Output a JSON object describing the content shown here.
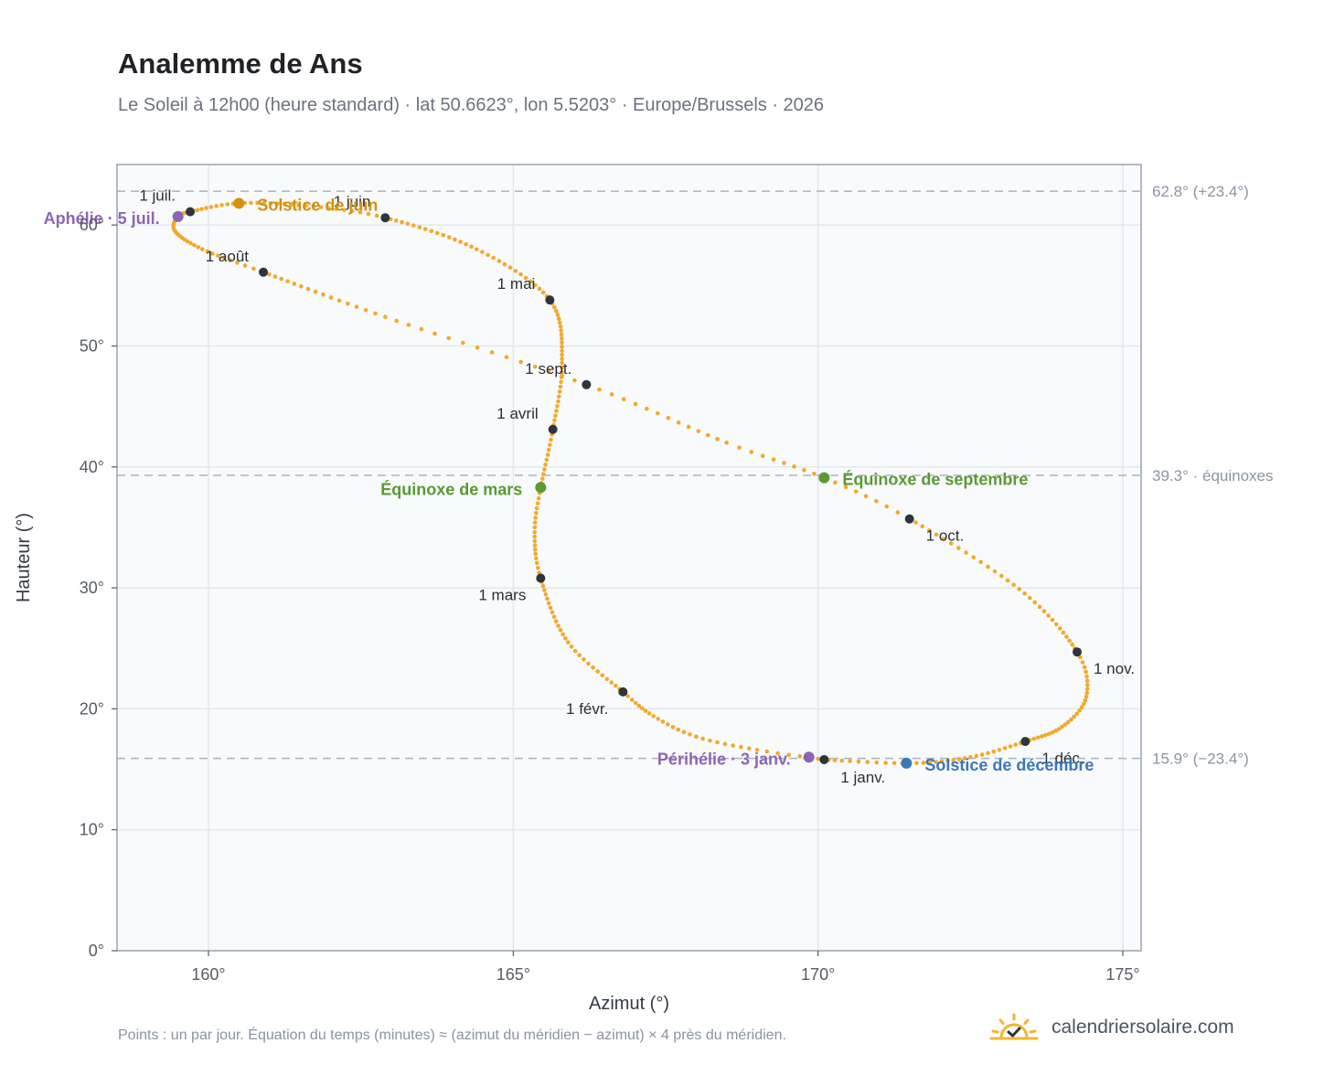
{
  "title": "Analemme de Ans",
  "subtitle": "Le Soleil à 12h00 (heure standard) · lat 50.6623°, lon 5.5203° · Europe/Brussels · 2026",
  "footnote": "Points : un par jour. Équation du temps (minutes) ≈ (azimut du méridien − azimut) × 4 près du méridien.",
  "brand": {
    "text": "calendriersolaire.com",
    "icon": "sun-check-icon",
    "color": "#f2b731"
  },
  "colors": {
    "curve": "#f2a92b",
    "month_marker": "#2f343b",
    "solstice_june": "#d4900e",
    "solstice_december": "#3a78b8",
    "equinox": "#5a9a32",
    "apsis": "#8d64b4",
    "grid": "#e3e8ee",
    "plot_bg": "#f8fafc",
    "frame": "#9aa4b1",
    "reference_line": "#a8b3c2"
  },
  "chart_data": {
    "type": "scatter",
    "title": "Analemme de Ans",
    "xlabel": "Azimut (°)",
    "ylabel": "Hauteur (°)",
    "xlim": [
      158.5,
      175.3
    ],
    "ylim": [
      0,
      65
    ],
    "xticks": [
      160,
      165,
      170,
      175
    ],
    "xtick_labels": [
      "160°",
      "165°",
      "170°",
      "175°"
    ],
    "yticks": [
      0,
      10,
      20,
      30,
      40,
      50,
      60
    ],
    "ytick_labels": [
      "0°",
      "10°",
      "20°",
      "30°",
      "40°",
      "50°",
      "60°"
    ],
    "grid": true,
    "marker_note": "one point per day",
    "curve_anchors": [
      {
        "doy": 1,
        "az": 170.1,
        "alt": 15.8
      },
      {
        "doy": 8,
        "az": 169.0,
        "alt": 16.6
      },
      {
        "doy": 16,
        "az": 168.0,
        "alt": 17.7
      },
      {
        "doy": 24,
        "az": 167.3,
        "alt": 19.4
      },
      {
        "doy": 32,
        "az": 166.8,
        "alt": 21.4
      },
      {
        "doy": 45,
        "az": 165.9,
        "alt": 25.5
      },
      {
        "doy": 60,
        "az": 165.45,
        "alt": 30.8
      },
      {
        "doy": 70,
        "az": 165.35,
        "alt": 34.6
      },
      {
        "doy": 79,
        "az": 165.45,
        "alt": 38.3
      },
      {
        "doy": 91,
        "az": 165.65,
        "alt": 43.1
      },
      {
        "doy": 105,
        "az": 165.8,
        "alt": 48.6
      },
      {
        "doy": 121,
        "az": 165.6,
        "alt": 53.8
      },
      {
        "doy": 136,
        "az": 164.4,
        "alt": 58.0
      },
      {
        "doy": 152,
        "az": 162.9,
        "alt": 60.6
      },
      {
        "doy": 162,
        "az": 161.6,
        "alt": 61.6
      },
      {
        "doy": 172,
        "az": 160.5,
        "alt": 61.8
      },
      {
        "doy": 182,
        "az": 159.7,
        "alt": 61.1
      },
      {
        "doy": 186,
        "az": 159.5,
        "alt": 60.7
      },
      {
        "doy": 194,
        "az": 159.45,
        "alt": 59.5
      },
      {
        "doy": 204,
        "az": 159.9,
        "alt": 58.0
      },
      {
        "doy": 213,
        "az": 160.9,
        "alt": 56.1
      },
      {
        "doy": 229,
        "az": 162.9,
        "alt": 52.4
      },
      {
        "doy": 244,
        "az": 166.2,
        "alt": 46.8
      },
      {
        "doy": 257,
        "az": 168.5,
        "alt": 42.0
      },
      {
        "doy": 266,
        "az": 170.1,
        "alt": 39.1
      },
      {
        "doy": 274,
        "az": 171.5,
        "alt": 35.7
      },
      {
        "doy": 290,
        "az": 173.3,
        "alt": 29.9
      },
      {
        "doy": 305,
        "az": 174.25,
        "alt": 24.7
      },
      {
        "doy": 315,
        "az": 174.4,
        "alt": 21.0
      },
      {
        "doy": 325,
        "az": 174.0,
        "alt": 18.5
      },
      {
        "doy": 335,
        "az": 173.4,
        "alt": 17.3
      },
      {
        "doy": 345,
        "az": 172.5,
        "alt": 16.0
      },
      {
        "doy": 355,
        "az": 171.5,
        "alt": 15.5
      },
      {
        "doy": 366,
        "az": 170.1,
        "alt": 15.8
      }
    ],
    "month_markers": [
      {
        "label": "1 janv.",
        "az": 170.1,
        "alt": 15.8,
        "anchor": "start",
        "dx": 18,
        "dy": 25
      },
      {
        "label": "1 févr.",
        "az": 166.8,
        "alt": 21.4,
        "anchor": "end",
        "dx": -16,
        "dy": 24
      },
      {
        "label": "1 mars",
        "az": 165.45,
        "alt": 30.8,
        "anchor": "end",
        "dx": -16,
        "dy": 24
      },
      {
        "label": "1 avril",
        "az": 165.65,
        "alt": 43.1,
        "anchor": "end",
        "dx": -16,
        "dy": -12
      },
      {
        "label": "1 mai",
        "az": 165.6,
        "alt": 53.8,
        "anchor": "end",
        "dx": -16,
        "dy": -12
      },
      {
        "label": "1 juin",
        "az": 162.9,
        "alt": 60.6,
        "anchor": "end",
        "dx": -16,
        "dy": -12
      },
      {
        "label": "1 juil.",
        "az": 159.7,
        "alt": 61.1,
        "anchor": "end",
        "dx": -16,
        "dy": -12
      },
      {
        "label": "1 août",
        "az": 160.9,
        "alt": 56.1,
        "anchor": "end",
        "dx": -16,
        "dy": -12
      },
      {
        "label": "1 sept.",
        "az": 166.2,
        "alt": 46.8,
        "anchor": "end",
        "dx": -16,
        "dy": -12
      },
      {
        "label": "1 oct.",
        "az": 171.5,
        "alt": 35.7,
        "anchor": "start",
        "dx": 18,
        "dy": 24
      },
      {
        "label": "1 nov.",
        "az": 174.25,
        "alt": 24.7,
        "anchor": "start",
        "dx": 18,
        "dy": 24
      },
      {
        "label": "1 déc.",
        "az": 173.4,
        "alt": 17.3,
        "anchor": "start",
        "dx": 18,
        "dy": 24
      }
    ],
    "events": [
      {
        "label": "Solstice de juin",
        "az": 160.5,
        "alt": 61.8,
        "color": "#d4900e",
        "anchor": "start",
        "dx": 20,
        "dy": 8
      },
      {
        "label": "Aphélie · 5 juil.",
        "az": 159.5,
        "alt": 60.7,
        "color": "#8d64b4",
        "anchor": "end",
        "dx": -20,
        "dy": 8
      },
      {
        "label": "Équinoxe de mars",
        "az": 165.45,
        "alt": 38.3,
        "color": "#5a9a32",
        "anchor": "end",
        "dx": -20,
        "dy": 8
      },
      {
        "label": "Équinoxe de septembre",
        "az": 170.1,
        "alt": 39.1,
        "color": "#5a9a32",
        "anchor": "start",
        "dx": 20,
        "dy": 8
      },
      {
        "label": "Périhélie · 3 janv.",
        "az": 169.85,
        "alt": 16.0,
        "color": "#8d64b4",
        "anchor": "end",
        "dx": -20,
        "dy": 8
      },
      {
        "label": "Solstice de décembre",
        "az": 171.45,
        "alt": 15.5,
        "color": "#3a78b8",
        "anchor": "start",
        "dx": 20,
        "dy": 8
      }
    ],
    "reference_lines": [
      {
        "alt": 62.8,
        "label": "62.8° (+23.4°)"
      },
      {
        "alt": 39.3,
        "label": "39.3° · équinoxes"
      },
      {
        "alt": 15.9,
        "label": "15.9° (−23.4°)"
      }
    ]
  }
}
